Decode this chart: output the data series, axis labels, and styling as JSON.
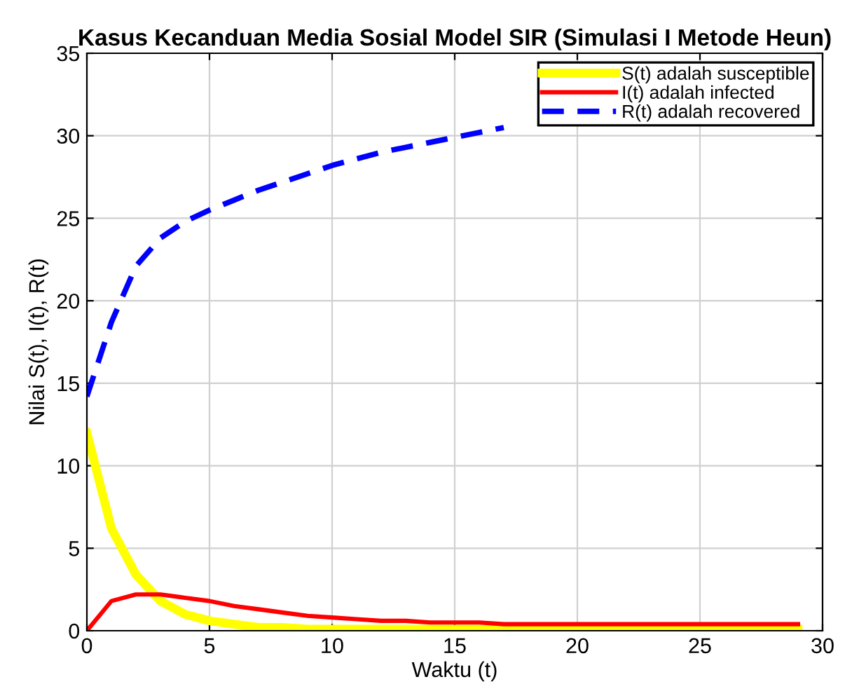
{
  "chart_data": {
    "type": "line",
    "title": "Kasus Kecanduan Media Sosial Model SIR (Simulasi I Metode Heun)",
    "xlabel": "Waktu (t)",
    "ylabel": "Nilai S(t), I(t), R(t)",
    "x": [
      0,
      1,
      2,
      3,
      4,
      5,
      6,
      7,
      8,
      9,
      10,
      11,
      12,
      13,
      14,
      15,
      16,
      17,
      18,
      19,
      20,
      21,
      22,
      23,
      24,
      25,
      26,
      27,
      28,
      29
    ],
    "series": [
      {
        "name": "S(t) adalah susceptible",
        "color": "#ffff00",
        "line_style": "solid",
        "values": [
          12,
          6.2,
          3.4,
          1.8,
          1.0,
          0.6,
          0.4,
          0.2,
          0.2,
          0.1,
          0.1,
          0.1,
          0.1,
          0.1,
          0.1,
          0.1,
          0.1,
          0.1,
          0.1,
          0.1,
          0.1,
          0.1,
          0.1,
          0.1,
          0.1,
          0.1,
          0.1,
          0.1,
          0.1,
          0.1
        ]
      },
      {
        "name": "I(t) adalah infected",
        "color": "#ff0000",
        "line_style": "solid",
        "values": [
          0,
          1.8,
          2.2,
          2.2,
          2.0,
          1.8,
          1.5,
          1.3,
          1.1,
          0.9,
          0.8,
          0.7,
          0.6,
          0.6,
          0.5,
          0.5,
          0.5,
          0.4,
          0.4,
          0.4,
          0.4,
          0.4,
          0.4,
          0.4,
          0.4,
          0.4,
          0.4,
          0.4,
          0.4,
          0.4
        ]
      },
      {
        "name": "R(t) adalah recovered",
        "color": "#0000ff",
        "line_style": "dashed",
        "values": [
          14.2,
          18.7,
          22.1,
          23.8,
          24.8,
          25.5,
          26.1,
          26.7,
          27.2,
          27.7,
          28.2,
          28.6,
          29.0,
          29.3,
          29.6,
          29.9,
          30.2,
          30.5,
          null,
          null,
          null,
          null,
          null,
          null,
          null,
          null,
          null,
          null,
          null,
          null
        ]
      }
    ],
    "xlim": [
      0,
      30
    ],
    "ylim": [
      0,
      35
    ],
    "xticks": [
      0,
      5,
      10,
      15,
      20,
      25,
      30
    ],
    "yticks": [
      0,
      5,
      10,
      15,
      20,
      25,
      30,
      35
    ],
    "grid": true,
    "legend": "top right"
  }
}
